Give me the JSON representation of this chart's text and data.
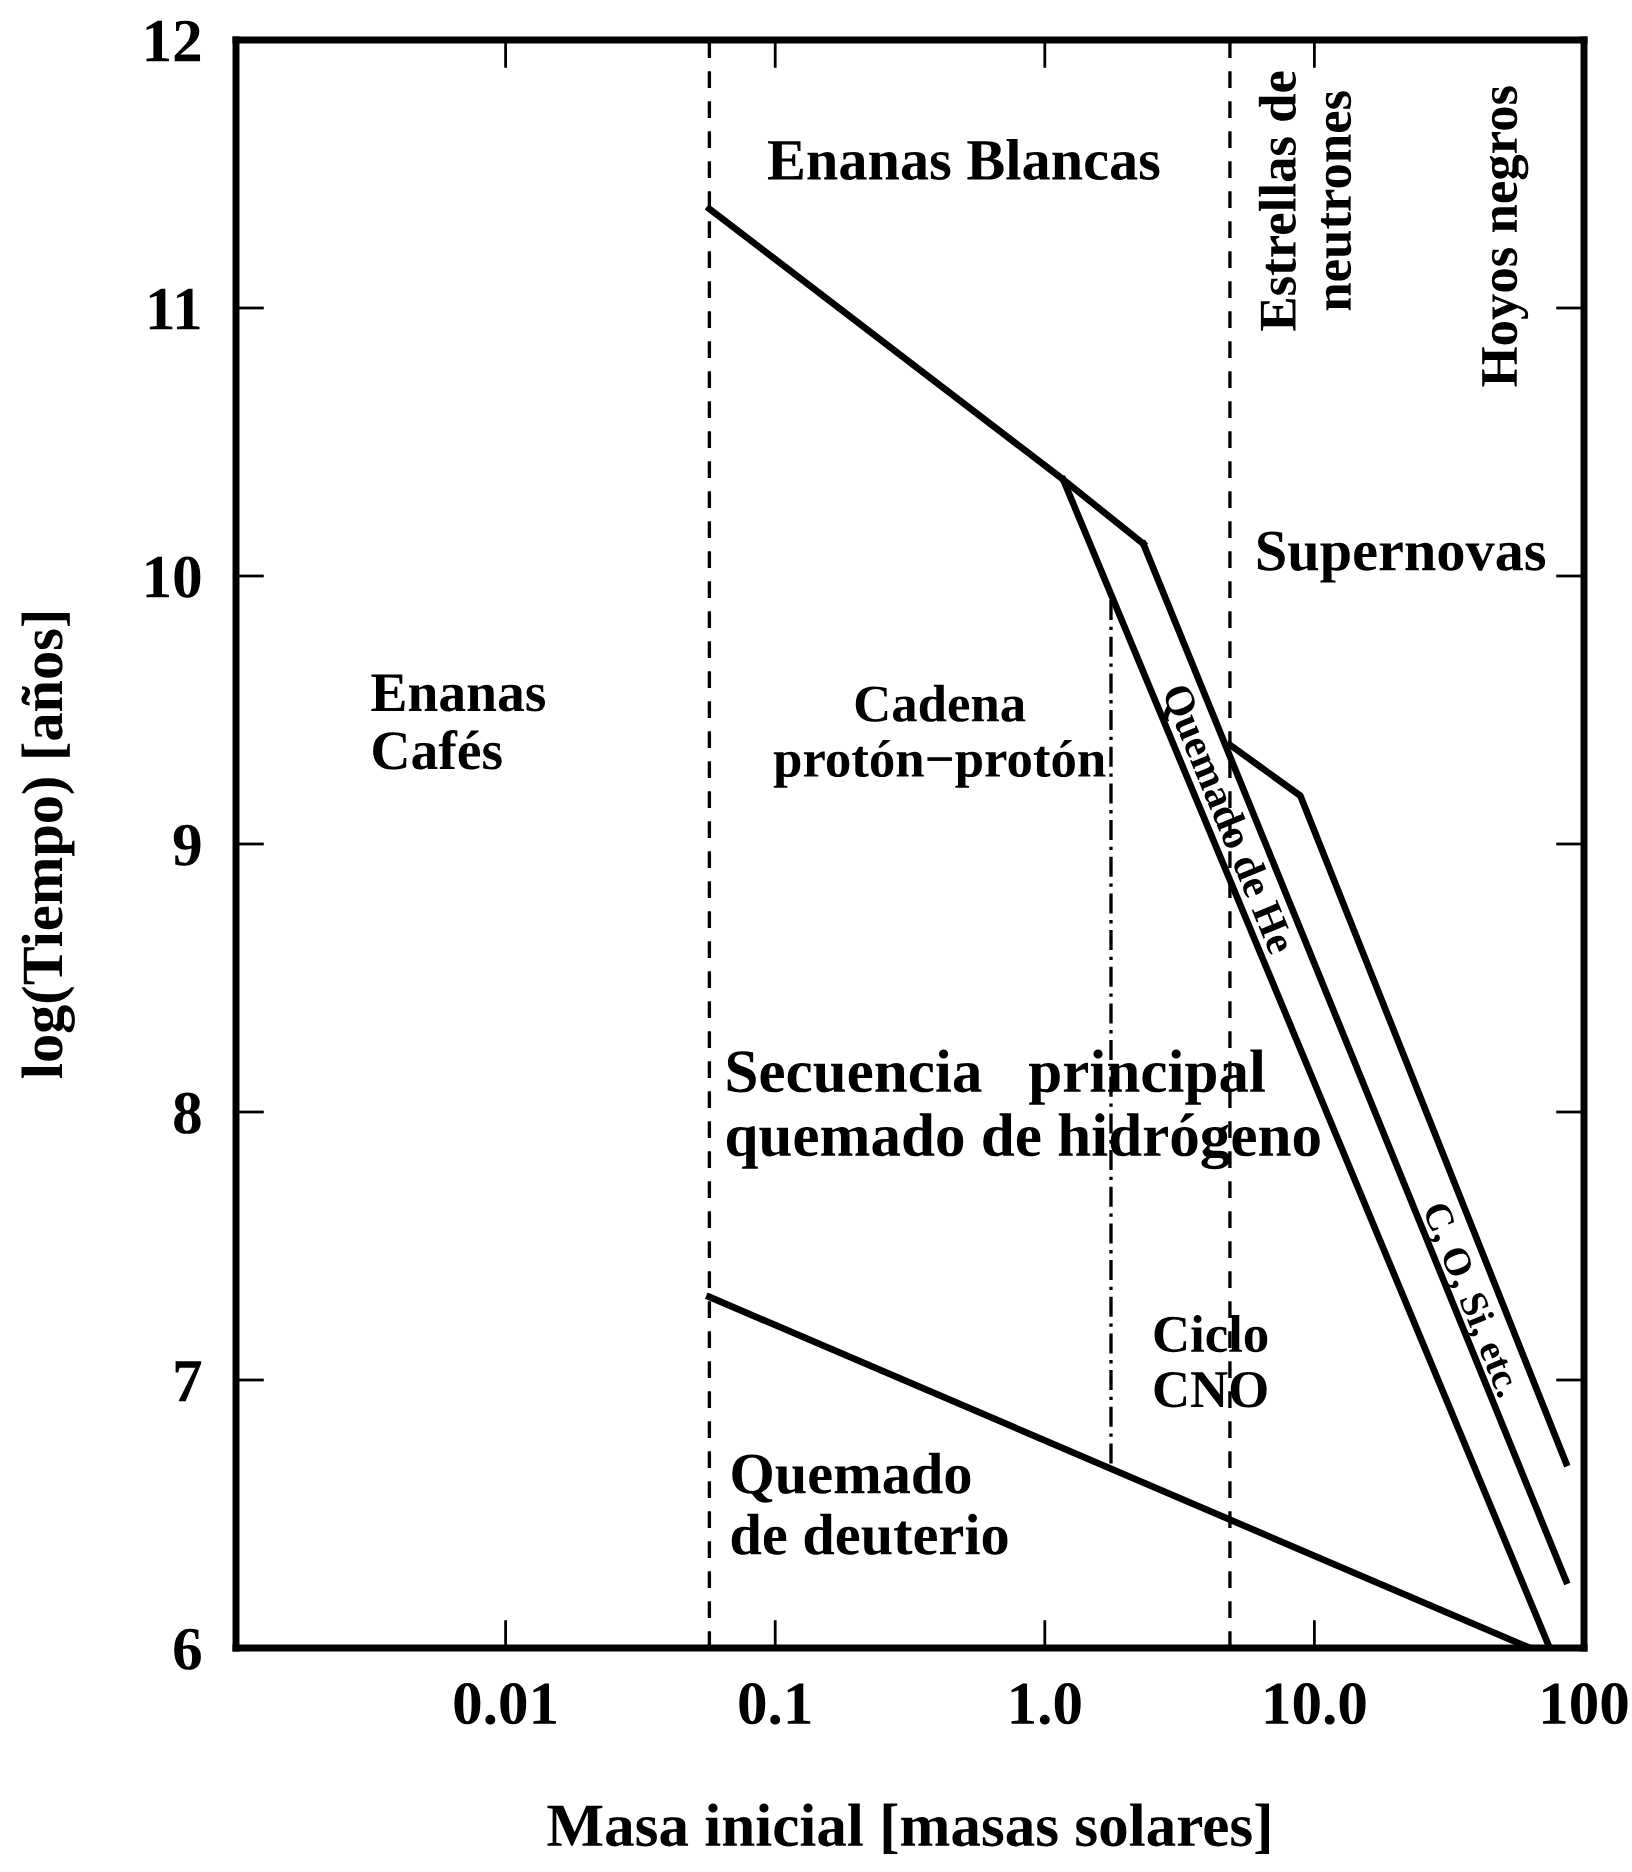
{
  "chart_data": {
    "type": "line",
    "xlabel": "Masa inicial [masas solares]",
    "ylabel": "log(Tiempo) [años]",
    "log": "x",
    "xlim": [
      0.001,
      100
    ],
    "xticks": [
      0.01,
      0.1,
      {
        "value": 1,
        "label": "1.0"
      },
      {
        "value": 10,
        "label": "10.0"
      },
      100
    ],
    "ylim": [
      6,
      12
    ],
    "yticks": [
      6,
      7,
      8,
      9,
      10,
      11,
      12
    ],
    "grid": false,
    "marker": "none",
    "series": [
      {
        "color": "#000000",
        "x": [
          0.057,
          1.17,
          2.32
        ],
        "values": [
          11.37,
          10.36,
          10.12
        ]
      },
      {
        "color": "#000000",
        "x": [
          1.17,
          74.6
        ],
        "values": [
          10.36,
          6.0
        ]
      },
      {
        "color": "#000000",
        "x": [
          2.32,
          85.8
        ],
        "values": [
          10.12,
          6.25
        ]
      },
      {
        "color": "#000000",
        "x": [
          4.86,
          8.87,
          85.8
        ],
        "values": [
          9.37,
          9.18,
          6.69
        ]
      },
      {
        "color": "#000000",
        "x": [
          0.057,
          63
        ],
        "values": [
          7.31,
          6.0
        ]
      },
      {
        "color": "#000000",
        "x": [
          1.76,
          1.76
        ],
        "values": [
          9.91,
          6.68
        ],
        "line_style": "dashdot"
      }
    ],
    "ref_lines": [
      {
        "axis": "x",
        "value": 0.057,
        "color": "#000000",
        "line_style": "dashed"
      },
      {
        "axis": "x",
        "value": 4.86,
        "color": "#000000",
        "line_style": "dashed"
      }
    ],
    "annotations": [
      "Enanas Blancas",
      "Estrellas de\nneutrones",
      "Hoyos negros",
      "Supernovas",
      "Enanas\nCafés",
      "Cadena\nprotón−protón",
      "Quemado de He",
      "C, O, Si, etc.",
      "Secuencia   principal\nquemado de hidrógeno",
      "Ciclo\nCNO",
      "Quemado\nde deuterio"
    ]
  }
}
